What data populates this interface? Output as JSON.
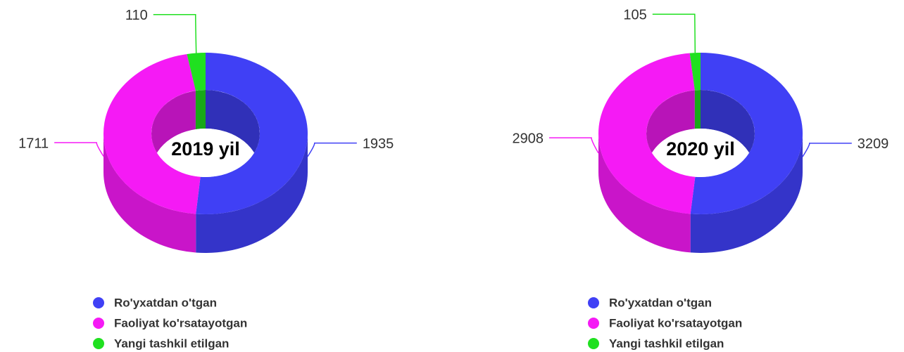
{
  "chart_data": [
    {
      "type": "pie",
      "title": "2019 yil",
      "categories": [
        "Ro'yxatdan o'tgan",
        "Faoliyat ko'rsatayotgan",
        "Yangi tashkil etilgan"
      ],
      "values": [
        1935,
        1711,
        110
      ],
      "colors": [
        "#4040f5",
        "#f51af5",
        "#20e020"
      ]
    },
    {
      "type": "pie",
      "title": "2020 yil",
      "categories": [
        "Ro'yxatdan o'tgan",
        "Faoliyat ko'rsatayotgan",
        "Yangi tashkil etilgan"
      ],
      "values": [
        3209,
        2908,
        105
      ],
      "colors": [
        "#4040f5",
        "#f51af5",
        "#20e020"
      ]
    }
  ]
}
